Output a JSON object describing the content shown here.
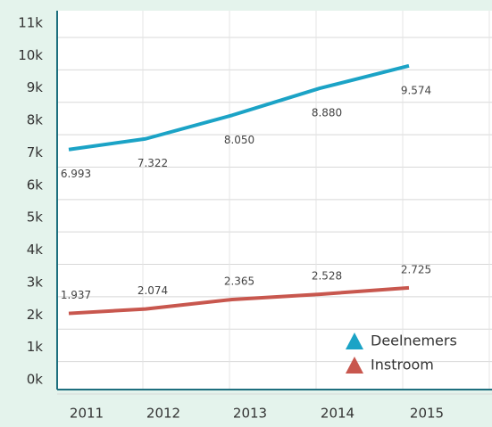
{
  "chart_data": {
    "type": "line",
    "categories": [
      "2011",
      "2012",
      "2013",
      "2014",
      "2015"
    ],
    "series": [
      {
        "name": "Deelnemers",
        "color": "#1ba3c6",
        "values": [
          6.993,
          7.322,
          8.05,
          8.88,
          9.574
        ],
        "value_labels": [
          "6.993",
          "7.322",
          "8.050",
          "8.880",
          "9.574"
        ]
      },
      {
        "name": "Instroom",
        "color": "#c8574e",
        "values": [
          1.937,
          2.074,
          2.365,
          2.528,
          2.725
        ],
        "value_labels": [
          "1.937",
          "2.074",
          "2.365",
          "2.528",
          "2.725"
        ]
      }
    ],
    "ylim": [
      0,
      11
    ],
    "yticks": [
      {
        "value": 0,
        "label": "0k"
      },
      {
        "value": 1,
        "label": "1k"
      },
      {
        "value": 2,
        "label": "2k"
      },
      {
        "value": 3,
        "label": "3k"
      },
      {
        "value": 4,
        "label": "4k"
      },
      {
        "value": 5,
        "label": "5k"
      },
      {
        "value": 6,
        "label": "6k"
      },
      {
        "value": 7,
        "label": "7k"
      },
      {
        "value": 8,
        "label": "8k"
      },
      {
        "value": 9,
        "label": "9k"
      },
      {
        "value": 10,
        "label": "10k"
      },
      {
        "value": 11,
        "label": "11k"
      }
    ],
    "grid": true,
    "legend": "lower right"
  }
}
